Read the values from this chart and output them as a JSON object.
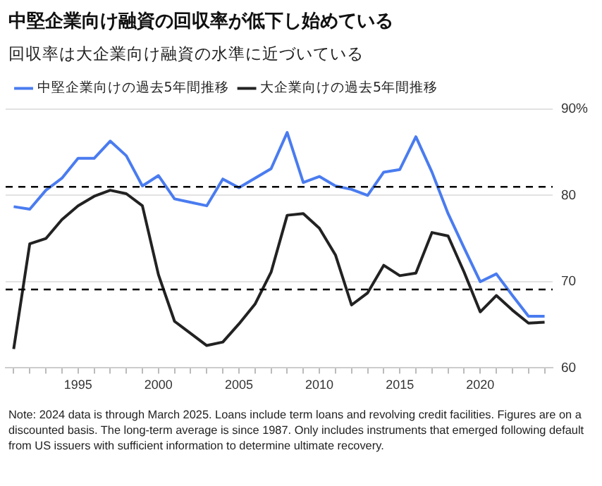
{
  "chart_data": {
    "type": "line",
    "title": "中堅企業向け融資の回収率が低下し始めている",
    "subtitle": "回収率は大企業向け融資の水準に近づいている",
    "x": [
      1991,
      1992,
      1993,
      1994,
      1995,
      1996,
      1997,
      1998,
      1999,
      2000,
      2001,
      2002,
      2003,
      2004,
      2005,
      2006,
      2007,
      2008,
      2009,
      2010,
      2011,
      2012,
      2013,
      2014,
      2015,
      2016,
      2017,
      2018,
      2019,
      2020,
      2021,
      2022,
      2023,
      2024
    ],
    "series": [
      {
        "name": "中堅企業向けの過去5年間推移",
        "color": "#4a7cf0",
        "values": [
          78.7,
          78.4,
          80.6,
          82.0,
          84.3,
          84.3,
          86.3,
          84.6,
          81.1,
          82.3,
          79.6,
          79.2,
          78.8,
          81.9,
          80.9,
          82.0,
          83.1,
          87.3,
          81.5,
          82.2,
          81.1,
          80.7,
          80.0,
          82.7,
          83.0,
          86.8,
          82.7,
          77.9,
          73.9,
          70.0,
          70.9,
          68.4,
          66.0,
          66.0
        ]
      },
      {
        "name": "大企業向けの過去5年間推移",
        "color": "#222222",
        "values": [
          62.2,
          74.4,
          75.0,
          77.2,
          78.8,
          79.9,
          80.6,
          80.2,
          78.8,
          70.8,
          65.4,
          64.0,
          62.6,
          63.0,
          65.1,
          67.4,
          71.1,
          77.7,
          77.9,
          76.2,
          73.1,
          67.3,
          68.7,
          71.9,
          70.7,
          71.0,
          75.7,
          75.3,
          71.1,
          66.5,
          68.4,
          66.7,
          65.2,
          65.3
        ]
      }
    ],
    "xlim": [
      1990.5,
      2024.5
    ],
    "xticks": [
      {
        "value": 1991,
        "label": null
      },
      {
        "value": 1992,
        "label": null
      },
      {
        "value": 1993,
        "label": null
      },
      {
        "value": 1994,
        "label": null
      },
      1995,
      {
        "value": 1996,
        "label": null
      },
      {
        "value": 1997,
        "label": null
      },
      {
        "value": 1998,
        "label": null
      },
      {
        "value": 1999,
        "label": null
      },
      2000,
      {
        "value": 2001,
        "label": null
      },
      {
        "value": 2002,
        "label": null
      },
      {
        "value": 2003,
        "label": null
      },
      {
        "value": 2004,
        "label": null
      },
      2005,
      {
        "value": 2006,
        "label": null
      },
      {
        "value": 2007,
        "label": null
      },
      {
        "value": 2008,
        "label": null
      },
      {
        "value": 2009,
        "label": null
      },
      2010,
      {
        "value": 2011,
        "label": null
      },
      {
        "value": 2012,
        "label": null
      },
      {
        "value": 2013,
        "label": null
      },
      {
        "value": 2014,
        "label": null
      },
      2015,
      {
        "value": 2016,
        "label": null
      },
      {
        "value": 2017,
        "label": null
      },
      {
        "value": 2018,
        "label": null
      },
      {
        "value": 2019,
        "label": null
      },
      2020,
      {
        "value": 2021,
        "label": null
      },
      {
        "value": 2022,
        "label": null
      },
      {
        "value": 2023,
        "label": null
      },
      {
        "value": 2024,
        "label": null
      }
    ],
    "ylim": [
      60,
      90
    ],
    "yticks": [
      60,
      70,
      80,
      {
        "value": 90,
        "label": "90%"
      }
    ],
    "ref_lines": [
      {
        "axis": "y",
        "value": 81.0,
        "color": "#000000",
        "line_style": "dashed"
      },
      {
        "axis": "y",
        "value": 69.1,
        "color": "#000000",
        "line_style": "dashed"
      }
    ],
    "grid": "y",
    "legend": "top left",
    "marker": "none",
    "line_style": "solid",
    "annotations": [
      "Note: 2024 data is through March 2025. Loans include term loans and revolving credit facilities. Figures are on a discounted basis. The long-term average is since 1987. Only includes instruments that emerged following default from US issuers with sufficient information to determine ultimate recovery."
    ]
  }
}
